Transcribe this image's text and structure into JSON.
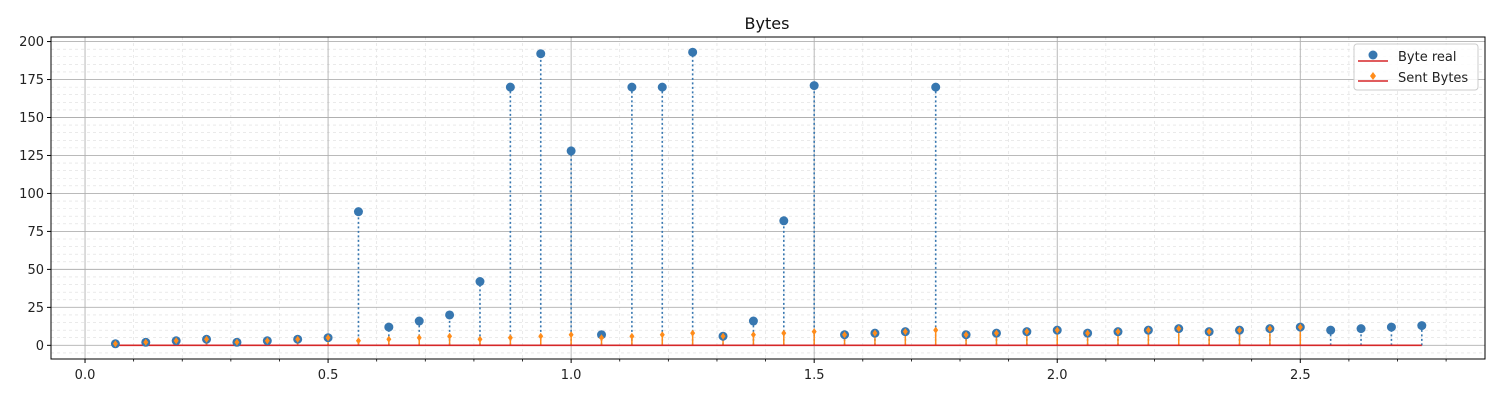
{
  "chart_data": {
    "type": "stem",
    "title": "Bytes",
    "xlabel": "",
    "ylabel": "",
    "xlim": [
      -0.07,
      2.88
    ],
    "ylim": [
      -9,
      203
    ],
    "x_ticks": [
      0.0,
      0.5,
      1.0,
      1.5,
      2.0,
      2.5
    ],
    "x_tick_labels": [
      "0.0",
      "0.5",
      "1.0",
      "1.5",
      "2.0",
      "2.5"
    ],
    "y_ticks": [
      0,
      25,
      50,
      75,
      100,
      125,
      150,
      175,
      200
    ],
    "y_tick_labels": [
      "0",
      "25",
      "50",
      "75",
      "100",
      "125",
      "150",
      "175",
      "200"
    ],
    "grid": true,
    "minor_grid": true,
    "legend_position": "top-right",
    "baseline": {
      "y": 0,
      "color": "#d62728"
    },
    "x": [
      0.0625,
      0.125,
      0.1875,
      0.25,
      0.3125,
      0.375,
      0.4375,
      0.5,
      0.5625,
      0.625,
      0.6875,
      0.75,
      0.8125,
      0.875,
      0.9375,
      1.0,
      1.0625,
      1.125,
      1.1875,
      1.25,
      1.3125,
      1.375,
      1.4375,
      1.5,
      1.5625,
      1.625,
      1.6875,
      1.75,
      1.8125,
      1.875,
      1.9375,
      2.0,
      2.0625,
      2.125,
      2.1875,
      2.25,
      2.3125,
      2.375,
      2.4375,
      2.5,
      2.5625,
      2.625,
      2.6875,
      2.75
    ],
    "series": [
      {
        "name": "Byte real",
        "color": "#3777b0",
        "marker": "circle",
        "stem_style": "dotted",
        "values": [
          1,
          2,
          3,
          4,
          2,
          3,
          4,
          5,
          88,
          12,
          16,
          20,
          42,
          170,
          192,
          128,
          7,
          170,
          170,
          193,
          6,
          16,
          82,
          171,
          7,
          8,
          9,
          170,
          7,
          8,
          9,
          10,
          8,
          9,
          10,
          11,
          9,
          10,
          11,
          12,
          10,
          11,
          12,
          13
        ]
      },
      {
        "name": "Sent Bytes",
        "color": "#ff8c1a",
        "marker": "diamond",
        "stem_style": "solid",
        "values": [
          1,
          2,
          3,
          4,
          2,
          3,
          4,
          5,
          3,
          4,
          5,
          6,
          4,
          5,
          6,
          7,
          5,
          6,
          7,
          8,
          6,
          7,
          8,
          9,
          7,
          8,
          9,
          10,
          7,
          8,
          9,
          10,
          8,
          9,
          10,
          11,
          9,
          10,
          11,
          12,
          0,
          0,
          0,
          0
        ]
      }
    ]
  }
}
